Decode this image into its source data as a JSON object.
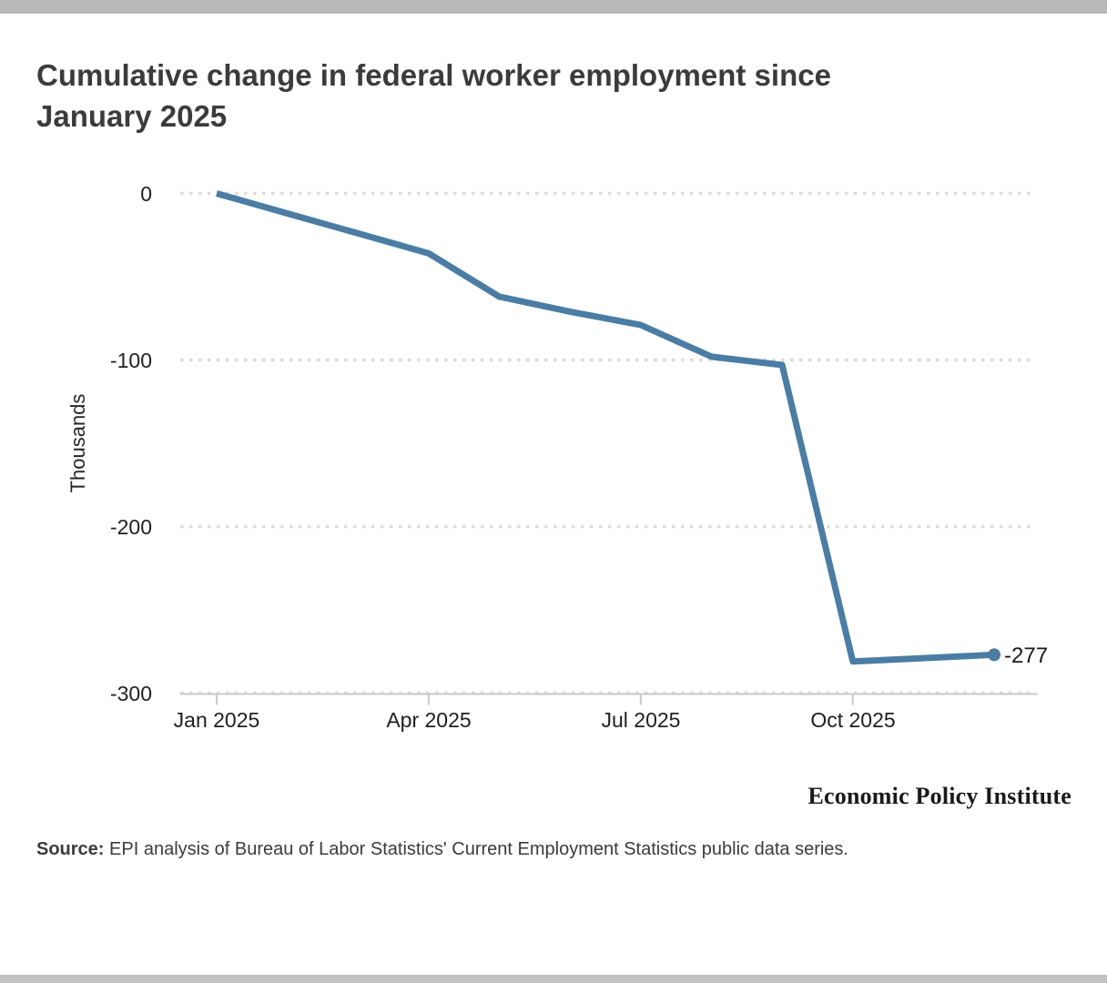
{
  "page": {
    "title_line1": "Cumulative change in federal worker employment since",
    "title_line2": "January 2025"
  },
  "chart_data": {
    "type": "line",
    "title": "Cumulative change in federal worker employment since January 2025",
    "xlabel": "",
    "ylabel": "Thousands",
    "x": [
      "Jan 2025",
      "Feb 2025",
      "Mar 2025",
      "Apr 2025",
      "May 2025",
      "Jun 2025",
      "Jul 2025",
      "Aug 2025",
      "Sep 2025",
      "Oct 2025",
      "Nov 2025",
      "Dec 2025"
    ],
    "series": [
      {
        "name": "Cumulative change in federal worker employment",
        "values": [
          0,
          -12,
          -24,
          -36,
          -62,
          -71,
          -79,
          -98,
          -103,
          -281,
          -279,
          -277
        ]
      }
    ],
    "end_label": "-277",
    "xticks": [
      "Jan 2025",
      "Apr 2025",
      "Jul 2025",
      "Oct 2025"
    ],
    "yticks": [
      0,
      -100,
      -200,
      -300
    ],
    "ylim": [
      -300,
      0
    ],
    "grid": "horizontal-dotted",
    "legend": "none",
    "colors": {
      "line": "#4b7da4",
      "gridline": "#dcdcdc",
      "axis": "#c9c9c9",
      "tick_text": "#222222",
      "title_text": "#3b3b3b"
    }
  },
  "branding": {
    "logo_text": "Economic Policy Institute"
  },
  "source": {
    "label": "Source:",
    "text": " EPI analysis of Bureau of Labor Statistics' Current Employment Statistics public data series."
  }
}
